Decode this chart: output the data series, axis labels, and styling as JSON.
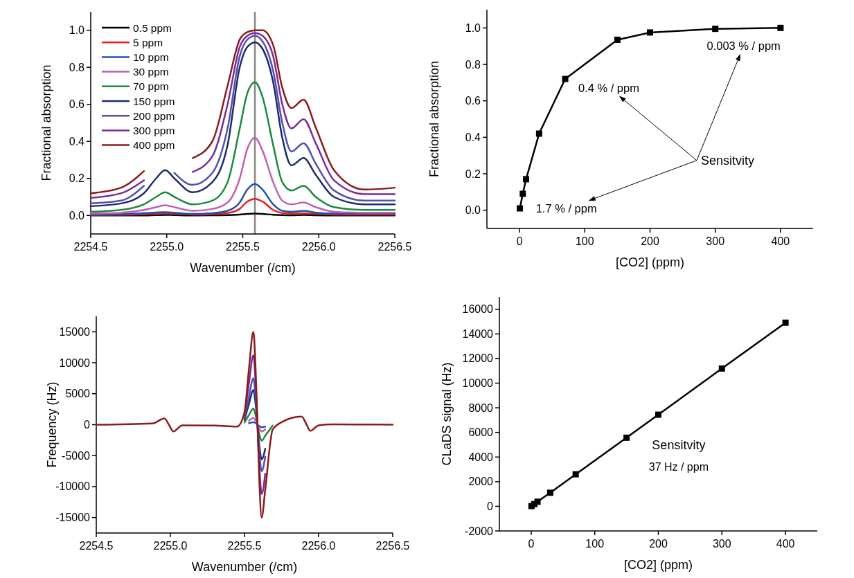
{
  "chart_data": [
    {
      "type": "line",
      "xlabel": "Wavenumber (/cm)",
      "ylabel": "Fractional absorption",
      "xlim": [
        2254.5,
        2256.5
      ],
      "ylim": [
        -0.1,
        1.1
      ],
      "xticks": [
        {
          "value": 2254.5,
          "label": "2254.5"
        },
        {
          "value": 2255,
          "label": "2255.0"
        },
        {
          "value": 2255.5,
          "label": "2255.5"
        },
        {
          "value": 2256,
          "label": "2256.0"
        },
        {
          "value": 2256.5,
          "label": "2256.5"
        }
      ],
      "yticks": [
        {
          "value": 0,
          "label": "0.0"
        },
        {
          "value": 0.2,
          "label": "0.2"
        },
        {
          "value": 0.4,
          "label": "0.4"
        },
        {
          "value": 0.6,
          "label": "0.6"
        },
        {
          "value": 0.8,
          "label": "0.8"
        },
        {
          "value": 1,
          "label": "1.0"
        }
      ],
      "legend": "top left",
      "x": [
        2254.5,
        2254.7,
        2254.85,
        2254.93,
        2254.99,
        2255.05,
        2255.17,
        2255.3,
        2255.4,
        2255.48,
        2255.53,
        2255.58,
        2255.63,
        2255.7,
        2255.76,
        2255.82,
        2255.9,
        2255.98,
        2256.1,
        2256.3,
        2256.5
      ],
      "series": [
        {
          "name": "0.5 ppm",
          "color": "#000000",
          "values": [
            0,
            0,
            0,
            0.002,
            0.003,
            0.002,
            0,
            0.001,
            0.002,
            0.005,
            0.008,
            0.01,
            0.008,
            0.004,
            0.002,
            0.001,
            0.003,
            0.001,
            0,
            0,
            0
          ]
        },
        {
          "name": "5 ppm",
          "color": "#e8201c",
          "values": [
            0.003,
            0.004,
            0.007,
            0.01,
            0.012,
            0.009,
            0.005,
            0.007,
            0.013,
            0.036,
            0.075,
            0.09,
            0.075,
            0.03,
            0.013,
            0.01,
            0.012,
            0.008,
            0.005,
            0.005,
            0.005
          ]
        },
        {
          "name": "10 ppm",
          "color": "#1f4fb0",
          "values": [
            0.005,
            0.007,
            0.012,
            0.016,
            0.018,
            0.015,
            0.008,
            0.012,
            0.025,
            0.07,
            0.14,
            0.17,
            0.14,
            0.06,
            0.025,
            0.02,
            0.025,
            0.015,
            0.01,
            0.01,
            0.01
          ]
        },
        {
          "name": "30 ppm",
          "color": "#c060b0",
          "values": [
            0.01,
            0.015,
            0.03,
            0.045,
            0.055,
            0.045,
            0.025,
            0.035,
            0.07,
            0.2,
            0.36,
            0.42,
            0.35,
            0.18,
            0.08,
            0.06,
            0.07,
            0.045,
            0.02,
            0.015,
            0.015
          ]
        },
        {
          "name": "70 ppm",
          "color": "#1a8a3a",
          "values": [
            0.02,
            0.03,
            0.06,
            0.1,
            0.125,
            0.1,
            0.06,
            0.08,
            0.18,
            0.47,
            0.66,
            0.72,
            0.64,
            0.38,
            0.18,
            0.135,
            0.16,
            0.1,
            0.045,
            0.03,
            0.03
          ]
        },
        {
          "name": "150 ppm",
          "color": "#1f2a6b",
          "values": [
            0.05,
            0.065,
            0.12,
            0.2,
            0.245,
            0.2,
            0.125,
            0.18,
            0.38,
            0.8,
            0.91,
            0.935,
            0.9,
            0.72,
            0.42,
            0.27,
            0.31,
            0.22,
            0.1,
            0.06,
            0.06
          ]
        },
        {
          "name": "200 ppm",
          "color": "#5050b0",
          "values": [
            0.065,
            0.08,
            0.16,
            null,
            null,
            0.23,
            0.165,
            0.23,
            0.47,
            0.86,
            0.95,
            0.97,
            0.94,
            0.78,
            0.5,
            0.345,
            0.39,
            0.28,
            0.135,
            0.08,
            0.08
          ]
        },
        {
          "name": "300 ppm",
          "color": "#7a2a9a",
          "values": [
            0.095,
            0.12,
            0.19,
            null,
            null,
            null,
            0.235,
            0.32,
            0.6,
            0.91,
            0.97,
            0.985,
            0.97,
            0.86,
            0.6,
            0.47,
            0.52,
            0.39,
            0.19,
            0.115,
            0.115
          ]
        },
        {
          "name": "400 ppm",
          "color": "#8b1a1a",
          "values": [
            0.12,
            0.15,
            0.24,
            null,
            null,
            null,
            0.31,
            0.4,
            0.7,
            0.95,
            0.99,
            1.0,
            1.0,
            0.92,
            0.69,
            0.58,
            0.625,
            0.475,
            0.245,
            0.14,
            0.15
          ]
        }
      ],
      "ref_lines": [
        {
          "axis": "x",
          "value": 2255.58,
          "color": "#888888"
        }
      ]
    },
    {
      "type": "line",
      "marker": "square",
      "xlabel": "[CO2] (ppm)",
      "ylabel": "Fractional absorption",
      "xlim": [
        -50,
        450
      ],
      "ylim": [
        -0.1,
        1.1
      ],
      "xticks": [
        0,
        100,
        200,
        300,
        400
      ],
      "yticks": [
        {
          "value": 0,
          "label": "0.0"
        },
        {
          "value": 0.2,
          "label": "0.2"
        },
        {
          "value": 0.4,
          "label": "0.4"
        },
        {
          "value": 0.6,
          "label": "0.6"
        },
        {
          "value": 0.8,
          "label": "0.8"
        },
        {
          "value": 1,
          "label": "1.0"
        }
      ],
      "x": [
        0.5,
        5,
        10,
        30,
        70,
        150,
        200,
        300,
        400
      ],
      "series": [
        {
          "color": "#000000",
          "values": [
            0.01,
            0.09,
            0.17,
            0.42,
            0.72,
            0.935,
            0.975,
            0.995,
            1.0
          ]
        }
      ],
      "annotations": [
        "0.003 % / ppm",
        "0.4 % / ppm",
        "1.7 % / ppm",
        "Sensitvity"
      ]
    },
    {
      "type": "line",
      "xlabel": "Wavenumber (/cm)",
      "ylabel": "Frequency (Hz)",
      "xlim": [
        2254.5,
        2256.5
      ],
      "ylim": [
        -17500,
        17500
      ],
      "xticks": [
        {
          "value": 2254.5,
          "label": "2254.5"
        },
        {
          "value": 2255,
          "label": "2255.0"
        },
        {
          "value": 2255.5,
          "label": "2255.5"
        },
        {
          "value": 2256,
          "label": "2256.0"
        },
        {
          "value": 2256.5,
          "label": "2256.5"
        }
      ],
      "yticks": [
        -15000,
        -10000,
        -5000,
        0,
        5000,
        10000,
        15000
      ],
      "x": [
        2254.5,
        2254.88,
        2254.96,
        2254.99,
        2255.02,
        2255.08,
        2255.3,
        2255.45,
        2255.5,
        2255.53,
        2255.56,
        2255.575,
        2255.588,
        2255.6,
        2255.616,
        2255.64,
        2255.69,
        2255.75,
        2255.886,
        2255.915,
        2255.944,
        2256.0,
        2256.1,
        2256.5
      ],
      "series": [
        {
          "color": "#1f4fb0",
          "x": [
            2255.53,
            2255.56,
            2255.575,
            2255.6,
            2255.616,
            2255.64
          ],
          "values": [
            250,
            400,
            250,
            -250,
            -400,
            -300
          ]
        },
        {
          "color": "#c060b0",
          "x": [
            2255.53,
            2255.56,
            2255.575,
            2255.6,
            2255.616,
            2255.64
          ],
          "values": [
            650,
            1100,
            650,
            -650,
            -1100,
            -750
          ]
        },
        {
          "color": "#1a8a3a",
          "x": [
            2255.5,
            2255.53,
            2255.56,
            2255.575,
            2255.6,
            2255.616,
            2255.64,
            2255.69
          ],
          "values": [
            350,
            1550,
            2600,
            1550,
            -1550,
            -2600,
            -1800,
            -150
          ]
        },
        {
          "color": "#1f2a6b",
          "x": [
            2255.5,
            2255.53,
            2255.56,
            2255.575,
            2255.6,
            2255.616,
            2255.64
          ],
          "values": [
            750,
            3350,
            5600,
            3350,
            -3350,
            -5600,
            -3900
          ]
        },
        {
          "color": "#5050b0",
          "x": [
            2255.5,
            2255.53,
            2255.56,
            2255.575,
            2255.6,
            2255.616,
            2255.64
          ],
          "values": [
            1000,
            4500,
            7500,
            4500,
            -4500,
            -7500,
            -5200
          ]
        },
        {
          "color": "#7a2a9a",
          "x": [
            2255.5,
            2255.53,
            2255.56,
            2255.575,
            2255.6,
            2255.616,
            2255.64
          ],
          "values": [
            1500,
            6700,
            11200,
            6700,
            -6700,
            -11200,
            -7900
          ]
        },
        {
          "color": "#8b1a1a",
          "values": [
            0,
            200,
            1000,
            0,
            -1100,
            -100,
            -150,
            -300,
            2000,
            9000,
            15000,
            9000,
            0,
            -9000,
            -15000,
            -10500,
            -800,
            400,
            1300,
            200,
            -1000,
            -100,
            50,
            0
          ]
        }
      ]
    },
    {
      "type": "line",
      "marker": "square",
      "xlabel": "[CO2] (ppm)",
      "ylabel": "CLaDS signal (Hz)",
      "xlim": [
        -50,
        450
      ],
      "ylim": [
        -2000,
        17000
      ],
      "xticks": [
        0,
        100,
        200,
        300,
        400
      ],
      "yticks": [
        -2000,
        0,
        2000,
        4000,
        6000,
        8000,
        10000,
        12000,
        14000,
        16000
      ],
      "x": [
        0.5,
        5,
        10,
        30,
        70,
        150,
        200,
        300,
        400
      ],
      "series": [
        {
          "color": "#000000",
          "values": [
            20,
            180,
            370,
            1100,
            2600,
            5570,
            7440,
            11190,
            14910
          ]
        }
      ],
      "annotations": [
        "Sensitvity",
        "37 Hz / ppm"
      ]
    }
  ]
}
